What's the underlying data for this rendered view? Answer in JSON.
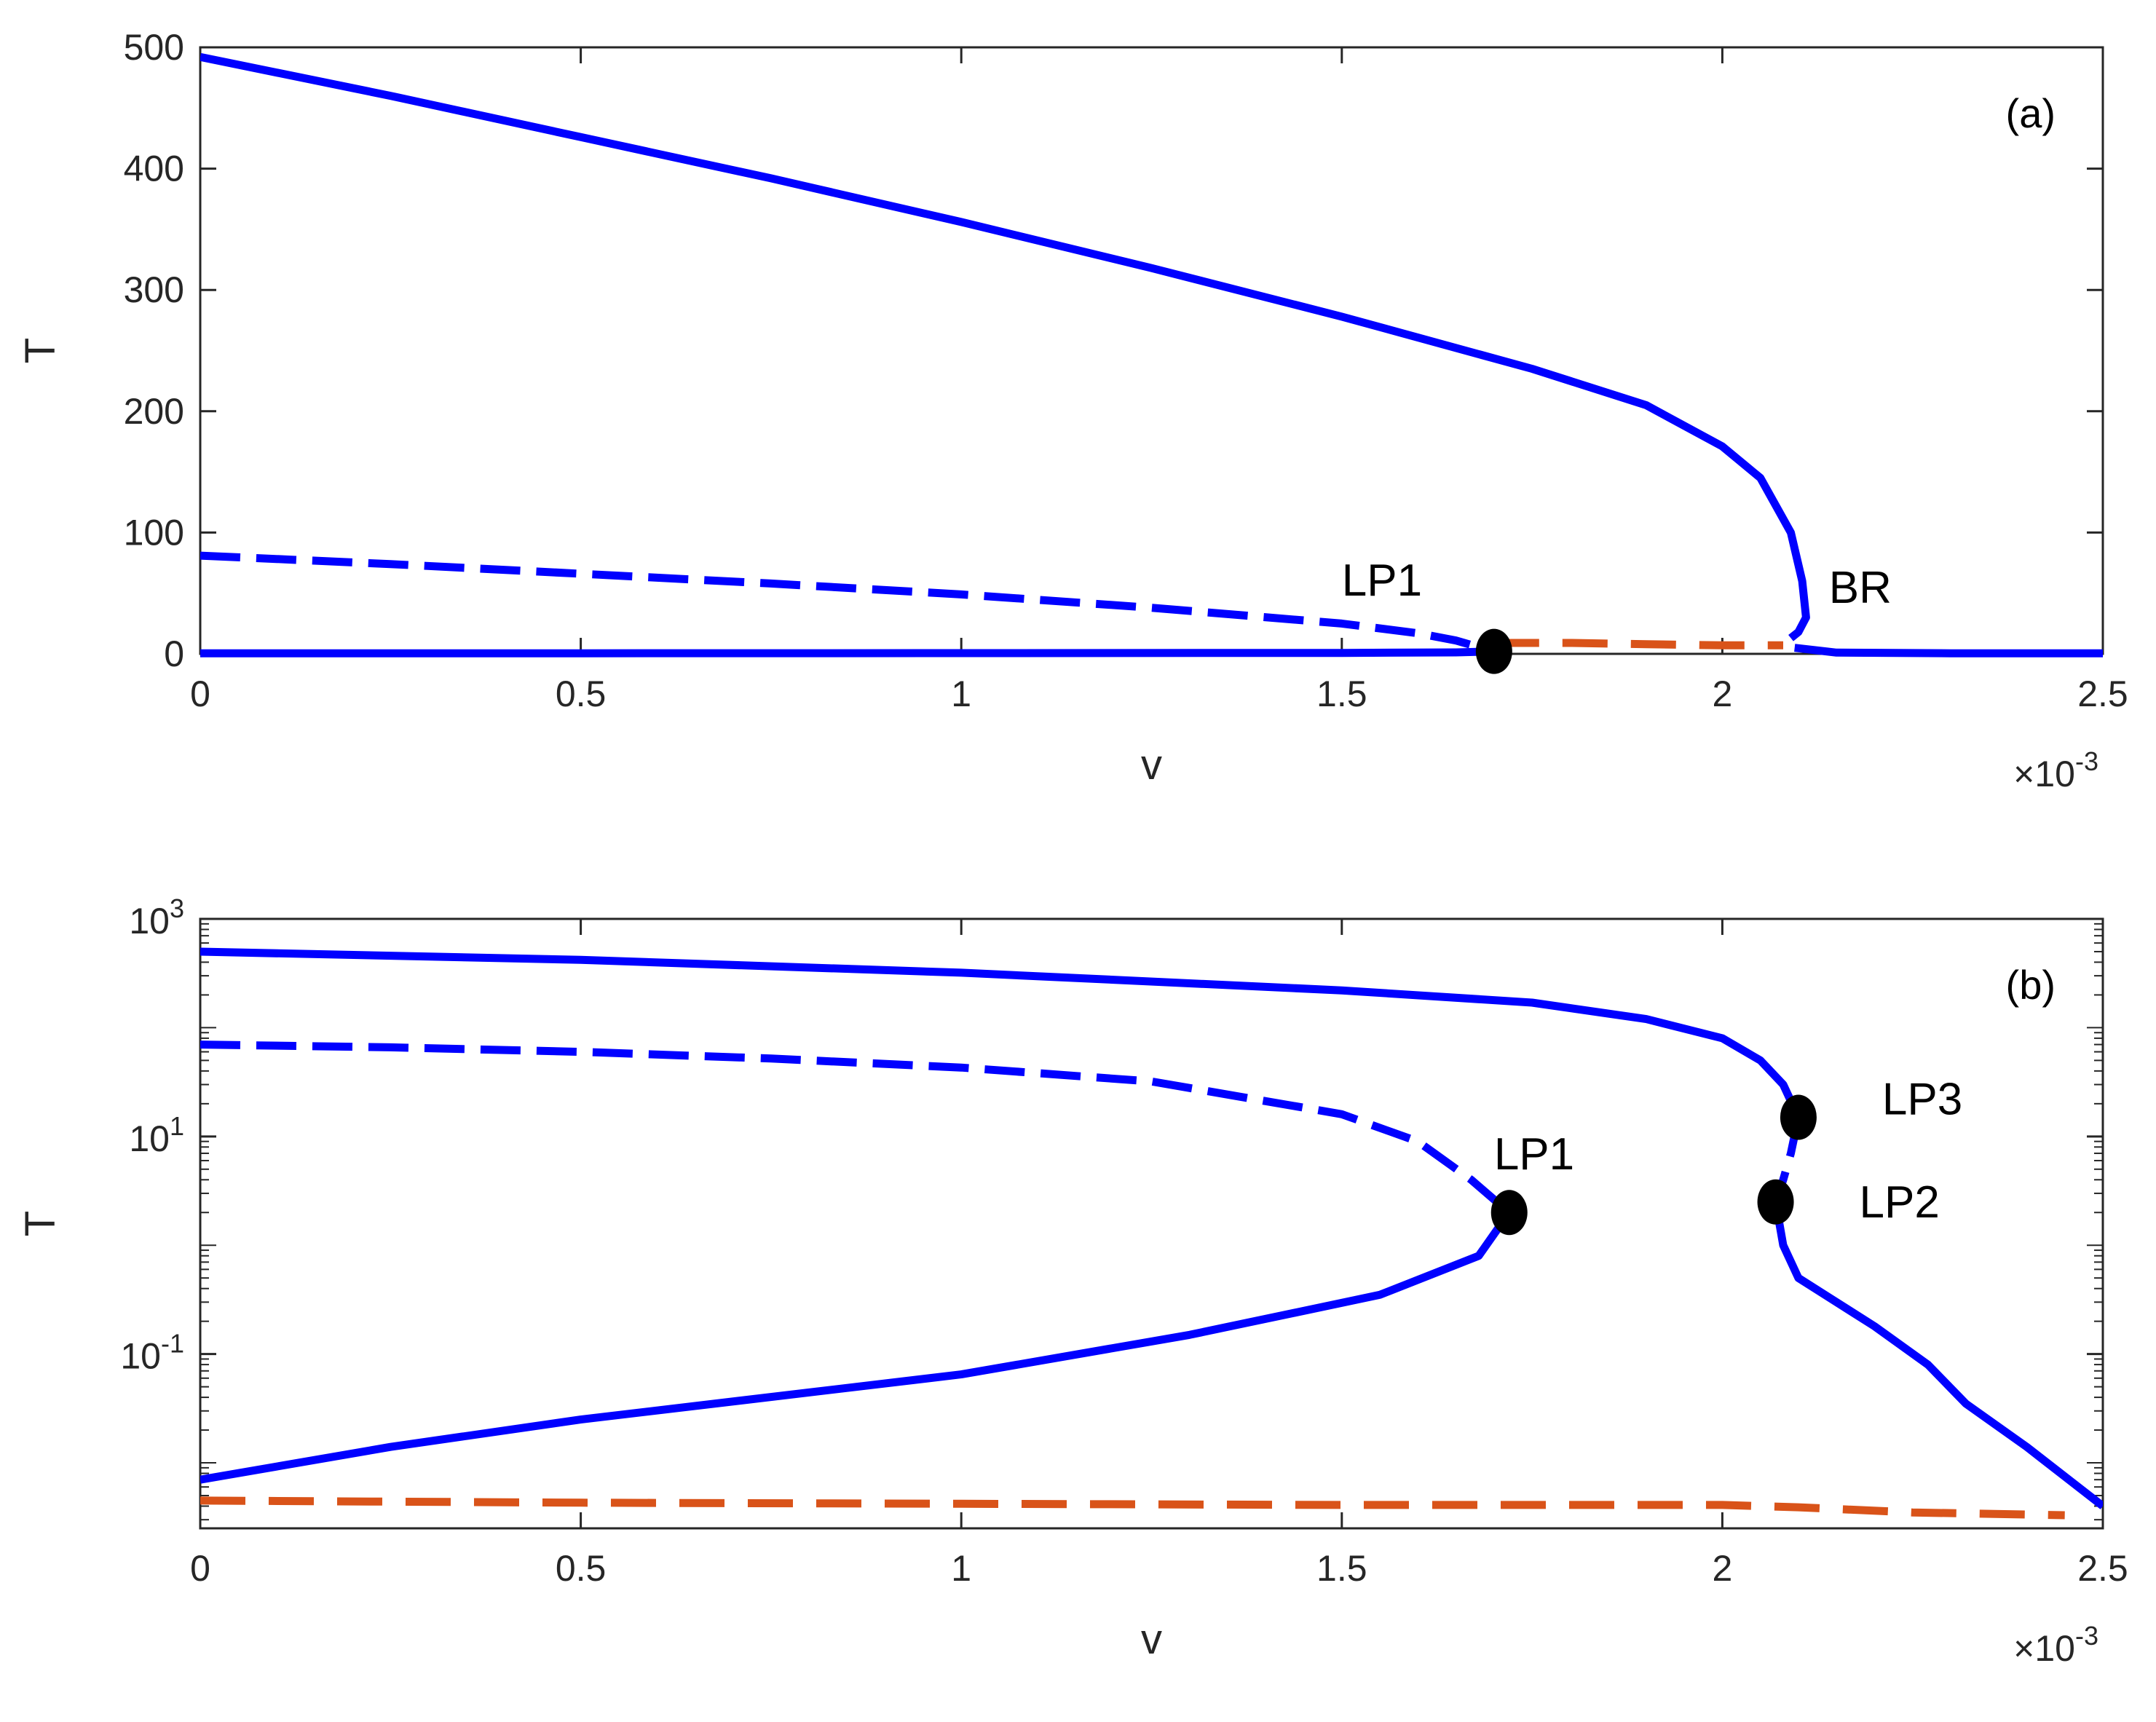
{
  "chart_data": [
    {
      "type": "line",
      "panel_label": "(a)",
      "xlabel": "v",
      "ylabel": "T",
      "x_exponent_label": "×10",
      "x_exponent_power": "-3",
      "xlim": [
        0,
        2.5
      ],
      "ylim": [
        0,
        500
      ],
      "xticks": [
        "0",
        "0.5",
        "1",
        "1.5",
        "2",
        "2.5"
      ],
      "yticks": [
        "0",
        "100",
        "200",
        "300",
        "400",
        "500"
      ],
      "x_tick_values": [
        0,
        0.5,
        1,
        1.5,
        2,
        2.5
      ],
      "y_tick_values": [
        0,
        100,
        200,
        300,
        400,
        500
      ],
      "colors": {
        "blue": "#0000ff",
        "orange": "#d95319",
        "marker": "#000000"
      },
      "series": [
        {
          "style": "solid",
          "color": "#0000ff",
          "points": [
            [
              0,
              492
            ],
            [
              0.25,
              460
            ],
            [
              0.5,
              426
            ],
            [
              0.75,
              392
            ],
            [
              1.0,
              356
            ],
            [
              1.25,
              318
            ],
            [
              1.5,
              278
            ],
            [
              1.75,
              235
            ],
            [
              1.9,
              205
            ],
            [
              2.0,
              171
            ],
            [
              2.05,
              145
            ],
            [
              2.09,
              100
            ],
            [
              2.105,
              60
            ],
            [
              2.11,
              30
            ],
            [
              2.1,
              18
            ],
            [
              2.09,
              13
            ]
          ]
        },
        {
          "style": "solid",
          "color": "#0000ff",
          "points": [
            [
              0,
              0.5
            ],
            [
              0.5,
              0.5
            ],
            [
              1.0,
              0.6
            ],
            [
              1.5,
              0.8
            ],
            [
              1.65,
              1.2
            ],
            [
              1.7,
              2
            ]
          ]
        },
        {
          "style": "dashed",
          "color": "#0000ff",
          "points": [
            [
              0,
              81
            ],
            [
              0.25,
              74
            ],
            [
              0.5,
              66
            ],
            [
              0.75,
              58
            ],
            [
              1.0,
              49
            ],
            [
              1.25,
              38
            ],
            [
              1.5,
              25
            ],
            [
              1.6,
              17
            ],
            [
              1.65,
              11
            ],
            [
              1.7,
              2
            ]
          ]
        },
        {
          "style": "solid",
          "color": "#0000ff",
          "points": [
            [
              2.095,
              5
            ],
            [
              2.15,
              1
            ],
            [
              2.3,
              0.5
            ],
            [
              2.5,
              0.5
            ]
          ]
        },
        {
          "style": "dashed",
          "color": "#d95319",
          "points": [
            [
              1.7,
              9
            ],
            [
              1.8,
              9
            ],
            [
              1.9,
              8
            ],
            [
              2.0,
              7
            ],
            [
              2.08,
              7
            ]
          ]
        }
      ],
      "markers": [
        {
          "label": "LP1",
          "x": 1.7,
          "y": 2
        }
      ],
      "annotations": [
        {
          "text": "LP1",
          "x": 1.5,
          "y": 48
        },
        {
          "text": "BR",
          "x": 2.14,
          "y": 42
        }
      ]
    },
    {
      "type": "line",
      "panel_label": "(b)",
      "xlabel": "v",
      "ylabel": "T",
      "yscale": "log",
      "x_exponent_label": "×10",
      "x_exponent_power": "-3",
      "xlim": [
        0,
        2.5
      ],
      "ylim": [
        0.0025,
        1000
      ],
      "xticks": [
        "0",
        "0.5",
        "1",
        "1.5",
        "2",
        "2.5"
      ],
      "x_tick_values": [
        0,
        0.5,
        1,
        1.5,
        2,
        2.5
      ],
      "ytick_values": [
        0.1,
        10,
        1000
      ],
      "ytick_base": "10",
      "ytick_powers": [
        "-1",
        "1",
        "3"
      ],
      "colors": {
        "blue": "#0000ff",
        "orange": "#d95319",
        "marker": "#000000"
      },
      "series": [
        {
          "style": "solid",
          "color": "#0000ff",
          "points": [
            [
              0,
              500
            ],
            [
              0.5,
              420
            ],
            [
              1.0,
              320
            ],
            [
              1.5,
              220
            ],
            [
              1.75,
              170
            ],
            [
              1.9,
              120
            ],
            [
              2.0,
              80
            ],
            [
              2.05,
              50
            ],
            [
              2.08,
              30
            ],
            [
              2.1,
              15
            ]
          ]
        },
        {
          "style": "dashed",
          "color": "#0000ff",
          "points": [
            [
              2.1,
              15
            ],
            [
              2.09,
              7
            ],
            [
              2.08,
              4
            ],
            [
              2.07,
              2.5
            ]
          ]
        },
        {
          "style": "solid",
          "color": "#0000ff",
          "points": [
            [
              2.07,
              2.5
            ],
            [
              2.08,
              1
            ],
            [
              2.1,
              0.5
            ],
            [
              2.2,
              0.18
            ],
            [
              2.27,
              0.08
            ],
            [
              2.32,
              0.035
            ],
            [
              2.4,
              0.014
            ],
            [
              2.5,
              0.004
            ]
          ]
        },
        {
          "style": "dashed",
          "color": "#0000ff",
          "points": [
            [
              0,
              70
            ],
            [
              0.25,
              66
            ],
            [
              0.5,
              60
            ],
            [
              0.75,
              52
            ],
            [
              1.0,
              43
            ],
            [
              1.25,
              32
            ],
            [
              1.5,
              16
            ],
            [
              1.6,
              9
            ],
            [
              1.67,
              4
            ],
            [
              1.72,
              2
            ]
          ]
        },
        {
          "style": "solid",
          "color": "#0000ff",
          "points": [
            [
              1.72,
              2
            ],
            [
              1.68,
              0.8
            ],
            [
              1.55,
              0.35
            ],
            [
              1.3,
              0.15
            ],
            [
              1.0,
              0.065
            ],
            [
              0.5,
              0.025
            ],
            [
              0.25,
              0.014
            ],
            [
              0,
              0.007
            ]
          ]
        },
        {
          "style": "dashed",
          "color": "#d95319",
          "points": [
            [
              0,
              0.0045
            ],
            [
              0.5,
              0.0043
            ],
            [
              1.0,
              0.0042
            ],
            [
              1.5,
              0.0041
            ],
            [
              2.0,
              0.0041
            ],
            [
              2.1,
              0.0039
            ],
            [
              2.25,
              0.0035
            ],
            [
              2.45,
              0.0033
            ]
          ]
        }
      ],
      "markers": [
        {
          "label": "LP1",
          "x": 1.72,
          "y": 2
        },
        {
          "label": "LP2",
          "x": 2.07,
          "y": 2.5
        },
        {
          "label": "LP3",
          "x": 2.1,
          "y": 15
        }
      ],
      "annotations": [
        {
          "text": "LP1",
          "x": 1.7,
          "y": 5
        },
        {
          "text": "LP2",
          "x": 2.18,
          "y": 1.8
        },
        {
          "text": "LP3",
          "x": 2.21,
          "y": 16
        }
      ]
    }
  ]
}
